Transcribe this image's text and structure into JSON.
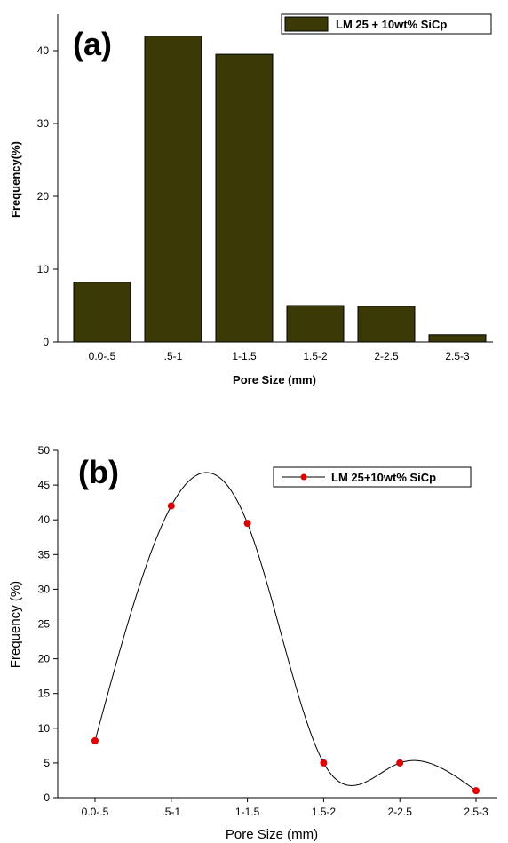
{
  "chart_data": [
    {
      "type": "bar",
      "panel_label": "(a)",
      "categories": [
        "0.0-.5",
        ".5-1",
        "1-1.5",
        "1.5-2",
        "2-2.5",
        "2.5-3"
      ],
      "series": [
        {
          "name": "LM 25 + 10wt% SiCp",
          "values": [
            8.2,
            42.0,
            39.5,
            5.0,
            4.9,
            1.0
          ]
        }
      ],
      "xlabel": "Pore Size (mm)",
      "ylabel": "Frequency(%)",
      "ylim": [
        0,
        45
      ],
      "yticks": [
        0,
        10,
        20,
        30,
        40
      ],
      "legend": "top-right",
      "grid": false,
      "colors": {
        "bar_fill": "#3b3a07",
        "bar_edge": "#000000"
      }
    },
    {
      "type": "line",
      "panel_label": "(b)",
      "categories": [
        "0.0-.5",
        ".5-1",
        "1-1.5",
        "1.5-2",
        "2-2.5",
        "2.5-3"
      ],
      "series": [
        {
          "name": "LM 25+10wt% SiCp",
          "values": [
            8.2,
            42.0,
            39.5,
            5.0,
            5.0,
            1.0
          ]
        }
      ],
      "xlabel": "Pore Size (mm)",
      "ylabel": "Frequency (%)",
      "ylim": [
        0,
        50
      ],
      "yticks": [
        0,
        5,
        10,
        15,
        20,
        25,
        30,
        35,
        40,
        45,
        50
      ],
      "legend": "top-right",
      "grid": false,
      "smooth": true,
      "colors": {
        "line": "#000000",
        "marker": "#e00000"
      }
    }
  ]
}
